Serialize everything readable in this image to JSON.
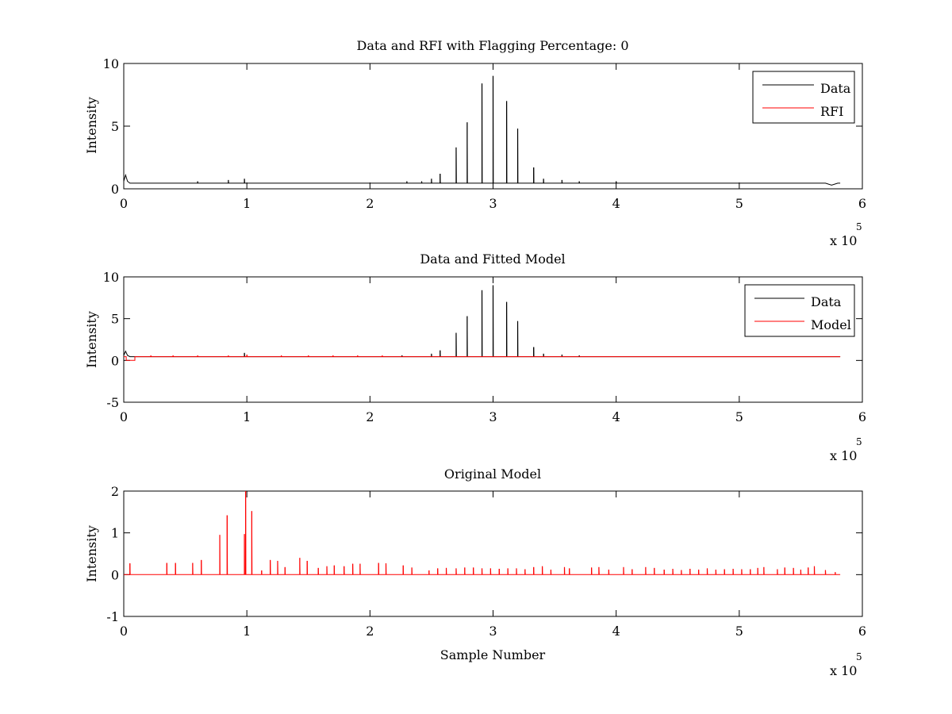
{
  "chart_data": [
    {
      "type": "line",
      "title": "Data and RFI with Flagging Percentage: 0",
      "xlabel": "",
      "ylabel": "Intensity",
      "xlim": [
        0,
        6
      ],
      "ylim": [
        0,
        10
      ],
      "xticks": [
        0,
        1,
        2,
        3,
        4,
        5,
        6
      ],
      "yticks": [
        0,
        5,
        10
      ],
      "x_multiplier_base": "x 10",
      "x_multiplier_exp": "5",
      "legend": {
        "position": "top-right",
        "entries": [
          "Data",
          "RFI"
        ]
      },
      "colors": {
        "Data": "#000000",
        "RFI": "#ff0000"
      },
      "series": [
        {
          "name": "Data",
          "baseline": 0.45,
          "spikes": [
            [
              0.98,
              0.8
            ],
            [
              2.57,
              1.2
            ],
            [
              2.7,
              3.3
            ],
            [
              2.79,
              5.3
            ],
            [
              2.91,
              8.4
            ],
            [
              3.0,
              9.0
            ],
            [
              3.11,
              7.0
            ],
            [
              3.2,
              4.8
            ],
            [
              3.33,
              1.7
            ],
            [
              3.41,
              0.8
            ],
            [
              2.3,
              0.6
            ],
            [
              2.42,
              0.6
            ],
            [
              2.5,
              0.8
            ],
            [
              0.6,
              0.6
            ],
            [
              0.85,
              0.7
            ],
            [
              3.56,
              0.7
            ],
            [
              3.7,
              0.6
            ],
            [
              4.0,
              0.6
            ]
          ],
          "start_bump": [
            [
              0,
              0.6
            ],
            [
              0.015,
              1.1
            ],
            [
              0.03,
              0.6
            ],
            [
              0.05,
              0.45
            ]
          ],
          "end_dip": [
            5.75,
            0.3
          ]
        },
        {
          "name": "RFI",
          "values_note_hidden": true
        }
      ]
    },
    {
      "type": "line",
      "title": "Data and Fitted Model",
      "xlabel": "",
      "ylabel": "Intensity",
      "xlim": [
        0,
        6
      ],
      "ylim": [
        -5,
        10
      ],
      "xticks": [
        0,
        1,
        2,
        3,
        4,
        5,
        6
      ],
      "yticks": [
        -5,
        0,
        5,
        10
      ],
      "x_multiplier_base": "x 10",
      "x_multiplier_exp": "5",
      "legend": {
        "position": "top-right",
        "entries": [
          "Data",
          "Model"
        ]
      },
      "colors": {
        "Data": "#000000",
        "Model": "#ff0000"
      },
      "series": [
        {
          "name": "Data",
          "baseline": 0.45,
          "spikes": [
            [
              0.98,
              0.9
            ],
            [
              2.57,
              1.2
            ],
            [
              2.7,
              3.3
            ],
            [
              2.79,
              5.3
            ],
            [
              2.91,
              8.4
            ],
            [
              3.0,
              9.0
            ],
            [
              3.11,
              7.0
            ],
            [
              3.2,
              4.7
            ],
            [
              3.33,
              1.6
            ],
            [
              3.41,
              0.8
            ],
            [
              2.5,
              0.8
            ],
            [
              2.26,
              0.6
            ],
            [
              3.56,
              0.7
            ],
            [
              3.7,
              0.6
            ]
          ],
          "start_bump": [
            [
              0,
              0.6
            ],
            [
              0.015,
              1.1
            ],
            [
              0.03,
              0.6
            ],
            [
              0.05,
              0.45
            ]
          ]
        },
        {
          "name": "Model",
          "baseline": 0.45,
          "spikes": [
            [
              0.22,
              0.6
            ],
            [
              0.4,
              0.6
            ],
            [
              0.6,
              0.6
            ],
            [
              0.85,
              0.6
            ],
            [
              1.0,
              0.7
            ],
            [
              1.28,
              0.6
            ],
            [
              1.5,
              0.6
            ],
            [
              1.7,
              0.6
            ],
            [
              1.9,
              0.6
            ],
            [
              2.1,
              0.6
            ]
          ],
          "dip": [
            [
              0.02,
              0.45
            ],
            [
              0.02,
              0.0
            ],
            [
              0.09,
              0.0
            ],
            [
              0.09,
              0.45
            ]
          ]
        }
      ]
    },
    {
      "type": "line",
      "title": "Original Model",
      "xlabel": "Sample Number",
      "ylabel": "Intensity",
      "xlim": [
        0,
        6
      ],
      "ylim": [
        -1,
        2
      ],
      "xticks": [
        0,
        1,
        2,
        3,
        4,
        5,
        6
      ],
      "yticks": [
        -1,
        0,
        1,
        2
      ],
      "x_multiplier_base": "x 10",
      "x_multiplier_exp": "5",
      "colors": {
        "Model": "#ff0000"
      },
      "series": [
        {
          "name": "",
          "baseline": 0,
          "spikes": [
            [
              0.05,
              0.27
            ],
            [
              0.35,
              0.28
            ],
            [
              0.42,
              0.28
            ],
            [
              0.56,
              0.28
            ],
            [
              0.63,
              0.35
            ],
            [
              0.78,
              0.95
            ],
            [
              0.84,
              1.42
            ],
            [
              0.98,
              0.97
            ],
            [
              0.99,
              2.0
            ],
            [
              1.04,
              1.52
            ],
            [
              1.12,
              0.1
            ],
            [
              1.19,
              0.35
            ],
            [
              1.25,
              0.33
            ],
            [
              1.31,
              0.18
            ],
            [
              1.43,
              0.4
            ],
            [
              1.49,
              0.33
            ],
            [
              1.58,
              0.16
            ],
            [
              1.65,
              0.2
            ],
            [
              1.71,
              0.22
            ],
            [
              1.79,
              0.2
            ],
            [
              1.86,
              0.26
            ],
            [
              1.92,
              0.26
            ],
            [
              2.07,
              0.28
            ],
            [
              2.13,
              0.27
            ],
            [
              2.27,
              0.22
            ],
            [
              2.34,
              0.17
            ],
            [
              2.48,
              0.1
            ],
            [
              2.55,
              0.15
            ],
            [
              2.62,
              0.16
            ],
            [
              2.7,
              0.15
            ],
            [
              2.77,
              0.17
            ],
            [
              2.84,
              0.17
            ],
            [
              2.91,
              0.15
            ],
            [
              2.98,
              0.15
            ],
            [
              3.05,
              0.14
            ],
            [
              3.12,
              0.15
            ],
            [
              3.19,
              0.15
            ],
            [
              3.26,
              0.13
            ],
            [
              3.33,
              0.18
            ],
            [
              3.4,
              0.2
            ],
            [
              3.47,
              0.12
            ],
            [
              3.58,
              0.18
            ],
            [
              3.62,
              0.15
            ],
            [
              3.8,
              0.17
            ],
            [
              3.86,
              0.18
            ],
            [
              3.94,
              0.12
            ],
            [
              4.06,
              0.18
            ],
            [
              4.13,
              0.13
            ],
            [
              4.24,
              0.18
            ],
            [
              4.31,
              0.16
            ],
            [
              4.39,
              0.12
            ],
            [
              4.46,
              0.14
            ],
            [
              4.53,
              0.11
            ],
            [
              4.6,
              0.14
            ],
            [
              4.67,
              0.12
            ],
            [
              4.74,
              0.15
            ],
            [
              4.81,
              0.12
            ],
            [
              4.88,
              0.13
            ],
            [
              4.95,
              0.14
            ],
            [
              5.02,
              0.13
            ],
            [
              5.09,
              0.13
            ],
            [
              5.15,
              0.16
            ],
            [
              5.2,
              0.18
            ],
            [
              5.31,
              0.13
            ],
            [
              5.37,
              0.17
            ],
            [
              5.44,
              0.16
            ],
            [
              5.5,
              0.12
            ],
            [
              5.56,
              0.17
            ],
            [
              5.61,
              0.2
            ],
            [
              5.7,
              0.11
            ],
            [
              5.78,
              0.06
            ]
          ]
        }
      ]
    }
  ]
}
